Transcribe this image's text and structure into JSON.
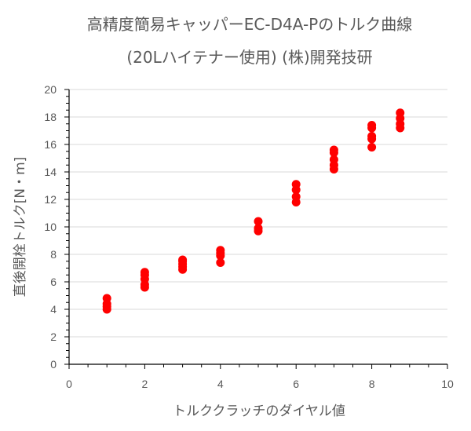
{
  "chart_data": {
    "type": "scatter",
    "title_line1": "高精度簡易キャッパーEC-D4A-Pのトルク曲線",
    "title_line2": "(20Lハイテナー使用) (株)開発技研",
    "xlabel": "トルククラッチのダイヤル値",
    "ylabel": "直後開栓トルク[N・m]",
    "xlim": [
      0,
      10
    ],
    "ylim": [
      0,
      20
    ],
    "x_ticks": [
      0,
      2,
      4,
      6,
      8,
      10
    ],
    "y_ticks": [
      0,
      2,
      4,
      6,
      8,
      10,
      12,
      14,
      16,
      18,
      20
    ],
    "grid": true,
    "marker_color": "#ff0000",
    "series": [
      {
        "points": [
          [
            1,
            4.0
          ],
          [
            1,
            4.2
          ],
          [
            1,
            4.4
          ],
          [
            1,
            4.8
          ],
          [
            2,
            5.6
          ],
          [
            2,
            5.8
          ],
          [
            2,
            6.2
          ],
          [
            2,
            6.5
          ],
          [
            2,
            6.7
          ],
          [
            3,
            6.9
          ],
          [
            3,
            7.1
          ],
          [
            3,
            7.3
          ],
          [
            3,
            7.5
          ],
          [
            3,
            7.6
          ],
          [
            4,
            7.4
          ],
          [
            4,
            7.9
          ],
          [
            4,
            8.1
          ],
          [
            4,
            8.3
          ],
          [
            5,
            9.7
          ],
          [
            5,
            9.9
          ],
          [
            5,
            10.4
          ],
          [
            6,
            11.8
          ],
          [
            6,
            12.2
          ],
          [
            6,
            12.7
          ],
          [
            6,
            13.1
          ],
          [
            7,
            14.2
          ],
          [
            7,
            14.5
          ],
          [
            7,
            14.9
          ],
          [
            7,
            15.4
          ],
          [
            7,
            15.6
          ],
          [
            8,
            15.8
          ],
          [
            8,
            16.4
          ],
          [
            8,
            16.6
          ],
          [
            8,
            17.2
          ],
          [
            8,
            17.4
          ],
          [
            8.75,
            17.2
          ],
          [
            8.75,
            17.5
          ],
          [
            8.75,
            17.9
          ],
          [
            8.75,
            18.3
          ]
        ]
      }
    ]
  }
}
